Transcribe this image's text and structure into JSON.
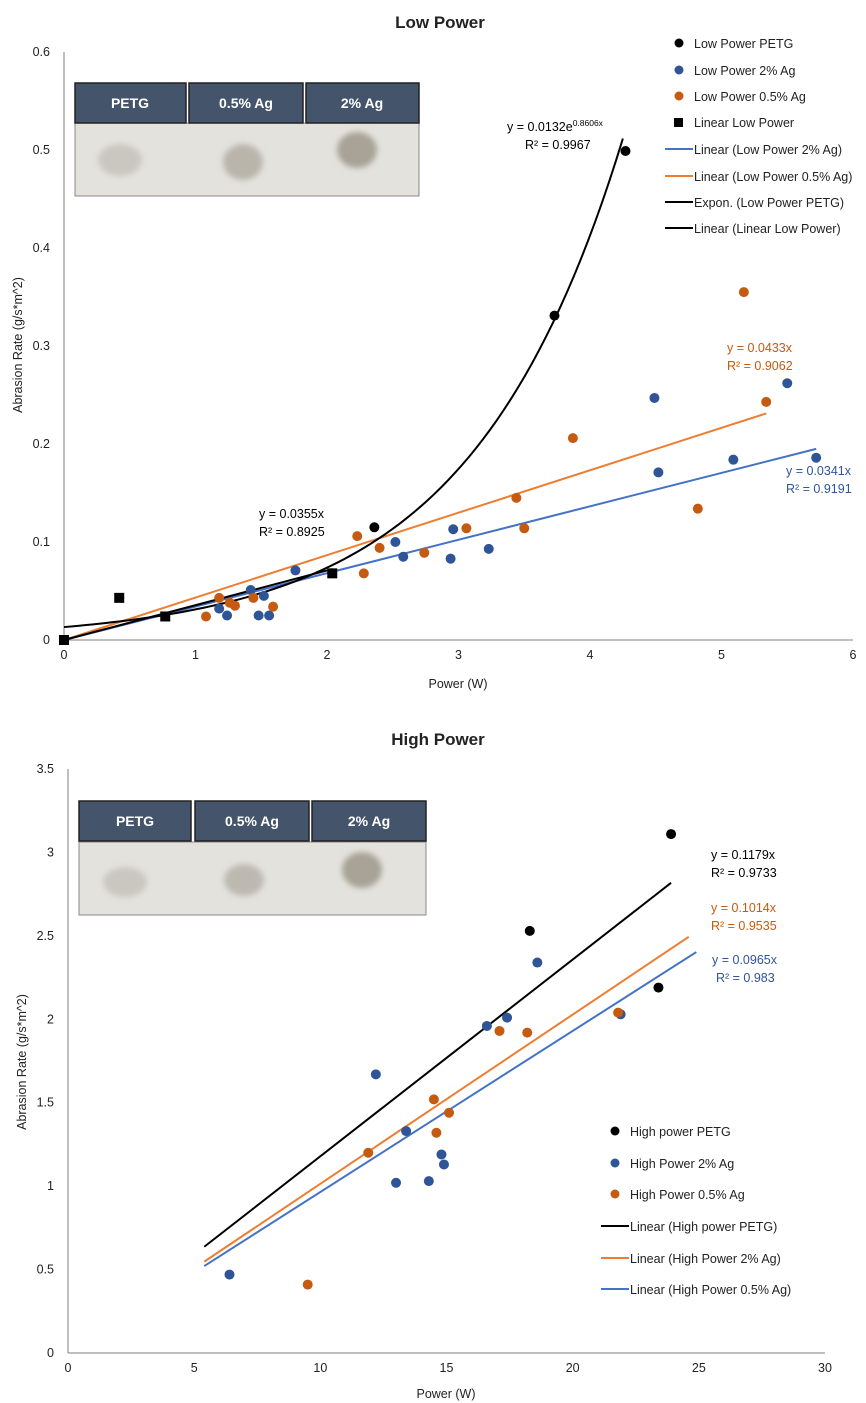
{
  "colors": {
    "petg": "#000000",
    "ag2": "#2f5597",
    "ag05": "#c55a11",
    "line_blue": "#4472c4",
    "line_orange": "#ed7d31",
    "header_fill": "#44546a"
  },
  "chart_data": [
    {
      "id": "low",
      "type": "scatter",
      "title": "Low Power",
      "xlabel": "Power (W)",
      "ylabel": "Abrasion Rate (g/s*m^2)",
      "xlim": [
        0,
        6
      ],
      "ylim": [
        0,
        0.6
      ],
      "xticks": [
        "0",
        "1",
        "2",
        "3",
        "4",
        "5",
        "6"
      ],
      "yticks": [
        "0",
        "0.1",
        "0.2",
        "0.3",
        "0.4",
        "0.5",
        "0.6"
      ],
      "grid": false,
      "legend_position": "top-right",
      "inset_headers": [
        "PETG",
        "0.5% Ag",
        "2% Ag"
      ],
      "series": [
        {
          "name": "Low Power PETG",
          "marker": "circle",
          "color": "#000000",
          "points": [
            [
              0,
              0
            ],
            [
              2.36,
              0.115
            ],
            [
              3.73,
              0.331
            ],
            [
              4.27,
              0.499
            ]
          ]
        },
        {
          "name": "Low Power 2% Ag",
          "marker": "circle",
          "color": "#2f5597",
          "points": [
            [
              1.18,
              0.032
            ],
            [
              1.24,
              0.025
            ],
            [
              1.42,
              0.051
            ],
            [
              1.48,
              0.025
            ],
            [
              1.52,
              0.045
            ],
            [
              1.56,
              0.025
            ],
            [
              1.76,
              0.071
            ],
            [
              2.52,
              0.1
            ],
            [
              2.58,
              0.085
            ],
            [
              2.94,
              0.083
            ],
            [
              2.96,
              0.113
            ],
            [
              3.23,
              0.093
            ],
            [
              4.49,
              0.247
            ],
            [
              4.52,
              0.171
            ],
            [
              5.09,
              0.184
            ],
            [
              5.5,
              0.262
            ],
            [
              5.72,
              0.186
            ]
          ]
        },
        {
          "name": "Low Power 0.5% Ag",
          "marker": "circle",
          "color": "#c55a11",
          "points": [
            [
              1.08,
              0.024
            ],
            [
              1.18,
              0.043
            ],
            [
              1.26,
              0.038
            ],
            [
              1.3,
              0.035
            ],
            [
              1.44,
              0.043
            ],
            [
              1.59,
              0.034
            ],
            [
              2.23,
              0.106
            ],
            [
              2.28,
              0.068
            ],
            [
              2.4,
              0.094
            ],
            [
              2.74,
              0.089
            ],
            [
              3.06,
              0.114
            ],
            [
              3.44,
              0.145
            ],
            [
              3.5,
              0.114
            ],
            [
              3.87,
              0.206
            ],
            [
              4.82,
              0.134
            ],
            [
              5.17,
              0.355
            ],
            [
              5.34,
              0.243
            ]
          ]
        },
        {
          "name": "Linear Low Power",
          "marker": "square",
          "color": "#000000",
          "points": [
            [
              0,
              0
            ],
            [
              0.42,
              0.043
            ],
            [
              0.77,
              0.024
            ],
            [
              2.04,
              0.068
            ]
          ]
        }
      ],
      "trendlines": [
        {
          "name": "Linear (Low Power 2% Ag)",
          "color": "#4472c4",
          "kind": "linear",
          "slope": 0.0341,
          "x_range": [
            0,
            5.72
          ]
        },
        {
          "name": "Linear (Low Power 0.5% Ag)",
          "color": "#ed7d31",
          "kind": "linear",
          "slope": 0.0433,
          "x_range": [
            0,
            5.34
          ]
        },
        {
          "name": "Expon. (Low Power PETG)",
          "color": "#000000",
          "kind": "exp",
          "a": 0.0132,
          "b": 0.8606,
          "x_range": [
            0,
            4.25
          ]
        },
        {
          "name": "Linear (Linear Low Power)",
          "color": "#000000",
          "kind": "linear",
          "slope": 0.0355,
          "x_range": [
            0,
            2.04
          ]
        }
      ],
      "equations": [
        {
          "line1": "y = 0.0132e",
          "sup": "0.8606x",
          "line2": "R² = 0.9967",
          "color": "#000000"
        },
        {
          "line1": "y = 0.0433x",
          "line2": "R² = 0.9062",
          "color": "#c55a11"
        },
        {
          "line1": "y = 0.0341x",
          "line2": "R² = 0.9191",
          "color": "#2f5597"
        },
        {
          "line1": "y = 0.0355x",
          "line2": "R² = 0.8925",
          "color": "#000000"
        }
      ]
    },
    {
      "id": "high",
      "type": "scatter",
      "title": "High Power",
      "xlabel": "Power (W)",
      "ylabel": "Abrasion Rate (g/s*m^2)",
      "xlim": [
        0,
        30
      ],
      "ylim": [
        0,
        3.5
      ],
      "xticks": [
        "0",
        "5",
        "10",
        "15",
        "20",
        "25",
        "30"
      ],
      "yticks": [
        "0",
        "0.5",
        "1",
        "1.5",
        "2",
        "2.5",
        "3",
        "3.5"
      ],
      "grid": false,
      "legend_position": "bottom-right",
      "inset_headers": [
        "PETG",
        "0.5% Ag",
        "2% Ag"
      ],
      "series": [
        {
          "name": "High power PETG",
          "marker": "circle",
          "color": "#000000",
          "points": [
            [
              18.3,
              2.53
            ],
            [
              23.4,
              2.19
            ],
            [
              23.9,
              3.11
            ]
          ]
        },
        {
          "name": "High Power 2% Ag",
          "marker": "circle",
          "color": "#2f5597",
          "points": [
            [
              6.4,
              0.47
            ],
            [
              12.2,
              1.67
            ],
            [
              13.0,
              1.02
            ],
            [
              13.4,
              1.33
            ],
            [
              14.3,
              1.03
            ],
            [
              14.8,
              1.19
            ],
            [
              14.9,
              1.13
            ],
            [
              16.6,
              1.96
            ],
            [
              17.4,
              2.01
            ],
            [
              18.6,
              2.34
            ],
            [
              21.9,
              2.03
            ]
          ]
        },
        {
          "name": "High Power 0.5% Ag",
          "marker": "circle",
          "color": "#c55a11",
          "points": [
            [
              9.5,
              0.41
            ],
            [
              11.9,
              1.2
            ],
            [
              14.5,
              1.52
            ],
            [
              14.6,
              1.32
            ],
            [
              15.1,
              1.44
            ],
            [
              17.1,
              1.93
            ],
            [
              18.2,
              1.92
            ],
            [
              21.8,
              2.04
            ]
          ]
        }
      ],
      "trendlines": [
        {
          "name": "Linear (High power PETG)",
          "color": "#000000",
          "kind": "linear",
          "slope": 0.1179,
          "x_range": [
            5.4,
            23.9
          ]
        },
        {
          "name": "Linear (High Power 2% Ag)",
          "color": "#ed7d31",
          "kind": "linear",
          "slope": 0.1014,
          "x_range": [
            5.4,
            24.6
          ]
        },
        {
          "name": "Linear (High Power 0.5% Ag)",
          "color": "#4472c4",
          "kind": "linear",
          "slope": 0.0965,
          "x_range": [
            5.4,
            24.9
          ]
        }
      ],
      "equations": [
        {
          "line1": "y = 0.1179x",
          "line2": "R² = 0.9733",
          "color": "#000000"
        },
        {
          "line1": "y = 0.1014x",
          "line2": "R² = 0.9535",
          "color": "#c55a11"
        },
        {
          "line1": "y = 0.0965x",
          "line2": "R² = 0.983",
          "color": "#2f5597"
        }
      ]
    }
  ]
}
